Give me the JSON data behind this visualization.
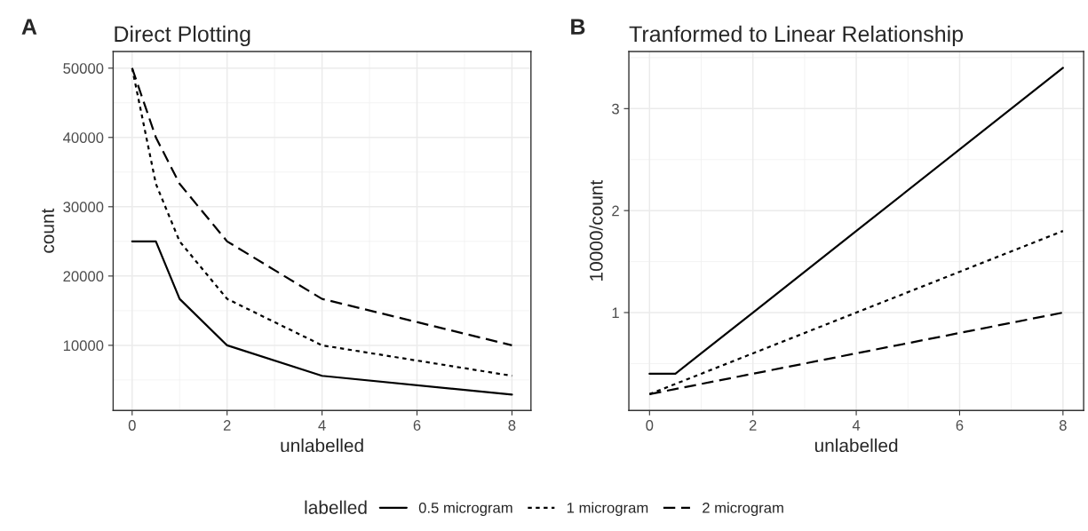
{
  "chart_data": [
    {
      "type": "line",
      "title": "Direct Plotting",
      "xlabel": "unlabelled",
      "ylabel": "count",
      "annotations": [
        "A"
      ],
      "x": [
        0,
        0.5,
        1,
        2,
        4,
        8
      ],
      "series": [
        {
          "name": "0.5 microgram",
          "color": "#000000",
          "line_style": "solid",
          "values": [
            25000,
            25000,
            16700,
            10000,
            5600,
            2900
          ]
        },
        {
          "name": "1 microgram",
          "color": "#000000",
          "line_style": "dotted",
          "values": [
            50000,
            33300,
            25000,
            16700,
            10000,
            5600
          ]
        },
        {
          "name": "2 microgram",
          "color": "#000000",
          "line_style": "dashed",
          "values": [
            50000,
            40000,
            33300,
            25000,
            16700,
            10000
          ]
        }
      ],
      "xlim": [
        -0.4,
        8.4
      ],
      "xticks": [
        0,
        2,
        4,
        6,
        8
      ],
      "ylim": [
        600,
        52400
      ],
      "yticks": [
        10000,
        20000,
        30000,
        40000,
        50000
      ],
      "grid": true,
      "legend": "bottom",
      "legend_title": "labelled"
    },
    {
      "type": "line",
      "title": "Tranformed to Linear Relationship",
      "xlabel": "unlabelled",
      "ylabel": "10000/count",
      "annotations": [
        "B"
      ],
      "x": [
        0,
        0.5,
        1,
        2,
        4,
        8
      ],
      "series": [
        {
          "color": "#000000",
          "line_style": "solid",
          "values": [
            0.4,
            0.4,
            0.6,
            1.0,
            1.8,
            3.4
          ]
        },
        {
          "color": "#000000",
          "line_style": "dotted",
          "values": [
            0.2,
            0.3,
            0.4,
            0.6,
            1.0,
            1.8
          ]
        },
        {
          "color": "#000000",
          "line_style": "dashed",
          "values": [
            0.2,
            0.25,
            0.3,
            0.4,
            0.6,
            1.0
          ]
        }
      ],
      "xlim": [
        -0.4,
        8.4
      ],
      "xticks": [
        0,
        2,
        4,
        6,
        8
      ],
      "ylim": [
        0.04,
        3.56
      ],
      "yticks": [
        1,
        2,
        3
      ],
      "grid": true,
      "legend": false
    }
  ]
}
